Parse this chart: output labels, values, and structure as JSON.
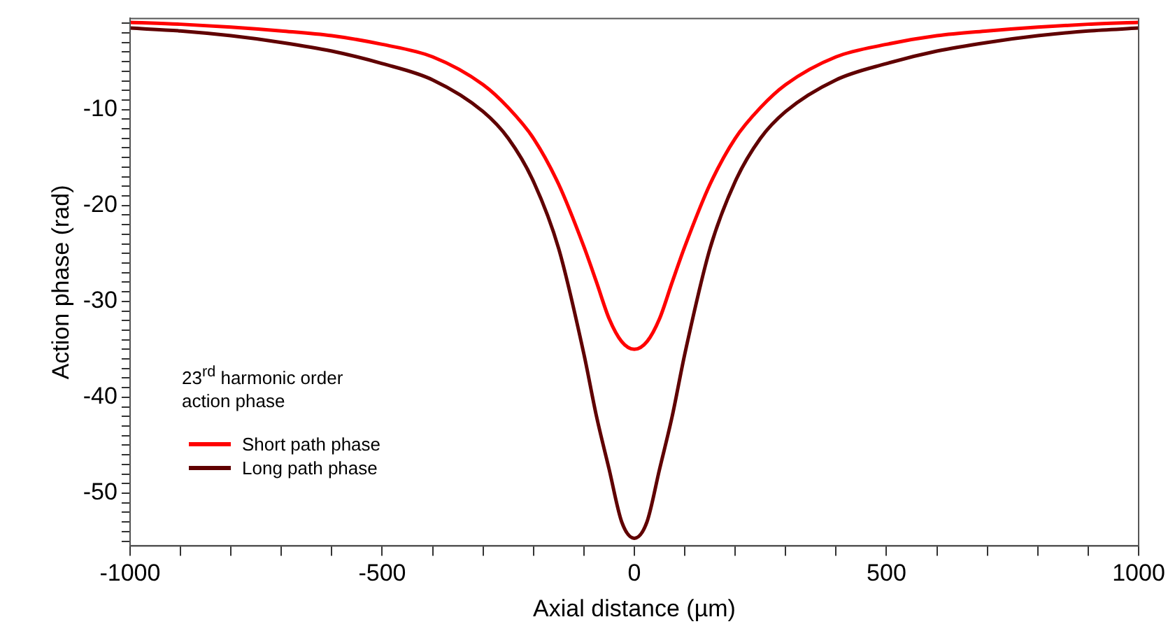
{
  "chart_data": {
    "type": "line",
    "xlabel": "Axial distance (µm)",
    "ylabel": "Action phase (rad)",
    "legend_title": "23$^{rd}$ harmonic order action phase",
    "legend": "bottom left",
    "grid": false,
    "line_style": "solid",
    "marker": "none",
    "xlim": [
      -1000,
      1000
    ],
    "ylim": [
      -55.5,
      -0.5
    ],
    "xticks": [
      -1000,
      {
        "value": -900,
        "label": null
      },
      {
        "value": -800,
        "label": null
      },
      {
        "value": -700,
        "label": null
      },
      {
        "value": -600,
        "label": null
      },
      -500,
      {
        "value": -400,
        "label": null
      },
      {
        "value": -300,
        "label": null
      },
      {
        "value": -200,
        "label": null
      },
      {
        "value": -100,
        "label": null
      },
      0,
      {
        "value": 100,
        "label": null
      },
      {
        "value": 200,
        "label": null
      },
      {
        "value": 300,
        "label": null
      },
      {
        "value": 400,
        "label": null
      },
      500,
      {
        "value": 600,
        "label": null
      },
      {
        "value": 700,
        "label": null
      },
      {
        "value": 800,
        "label": null
      },
      {
        "value": 900,
        "label": null
      },
      1000
    ],
    "yticks": [
      {
        "value": -55,
        "label": null
      },
      {
        "value": -54,
        "label": null
      },
      {
        "value": -53,
        "label": null
      },
      {
        "value": -52,
        "label": null
      },
      {
        "value": -51,
        "label": null
      },
      -50,
      {
        "value": -49,
        "label": null
      },
      {
        "value": -48,
        "label": null
      },
      {
        "value": -47,
        "label": null
      },
      {
        "value": -46,
        "label": null
      },
      {
        "value": -45,
        "label": null
      },
      {
        "value": -44,
        "label": null
      },
      {
        "value": -43,
        "label": null
      },
      {
        "value": -42,
        "label": null
      },
      {
        "value": -41,
        "label": null
      },
      -40,
      {
        "value": -39,
        "label": null
      },
      {
        "value": -38,
        "label": null
      },
      {
        "value": -37,
        "label": null
      },
      {
        "value": -36,
        "label": null
      },
      {
        "value": -35,
        "label": null
      },
      {
        "value": -34,
        "label": null
      },
      {
        "value": -33,
        "label": null
      },
      {
        "value": -32,
        "label": null
      },
      {
        "value": -31,
        "label": null
      },
      -30,
      {
        "value": -29,
        "label": null
      },
      {
        "value": -28,
        "label": null
      },
      {
        "value": -27,
        "label": null
      },
      {
        "value": -26,
        "label": null
      },
      {
        "value": -25,
        "label": null
      },
      {
        "value": -24,
        "label": null
      },
      {
        "value": -23,
        "label": null
      },
      {
        "value": -22,
        "label": null
      },
      {
        "value": -21,
        "label": null
      },
      -20,
      {
        "value": -19,
        "label": null
      },
      {
        "value": -18,
        "label": null
      },
      {
        "value": -17,
        "label": null
      },
      {
        "value": -16,
        "label": null
      },
      {
        "value": -15,
        "label": null
      },
      {
        "value": -14,
        "label": null
      },
      {
        "value": -13,
        "label": null
      },
      {
        "value": -12,
        "label": null
      },
      {
        "value": -11,
        "label": null
      },
      -10,
      {
        "value": -9,
        "label": null
      },
      {
        "value": -8,
        "label": null
      },
      {
        "value": -7,
        "label": null
      },
      {
        "value": -6,
        "label": null
      },
      {
        "value": -5,
        "label": null
      },
      {
        "value": -4,
        "label": null
      },
      {
        "value": -3,
        "label": null
      },
      {
        "value": -2,
        "label": null
      },
      {
        "value": -1,
        "label": null
      }
    ],
    "x": [
      -1000,
      -900,
      -800,
      -700,
      -600,
      -500,
      -400,
      -300,
      -250,
      -200,
      -150,
      -100,
      -75,
      -50,
      -25,
      0,
      25,
      50,
      75,
      100,
      150,
      200,
      250,
      300,
      400,
      500,
      600,
      700,
      800,
      900,
      1000
    ],
    "series": [
      {
        "name": "Short path phase",
        "color": "#ff0000",
        "values": [
          -0.9,
          -1.1,
          -1.4,
          -1.8,
          -2.3,
          -3.2,
          -4.5,
          -7.4,
          -9.8,
          -13.0,
          -17.8,
          -24.3,
          -28.0,
          -31.8,
          -34.2,
          -35.0,
          -34.2,
          -31.8,
          -28.0,
          -24.3,
          -17.8,
          -13.0,
          -9.8,
          -7.4,
          -4.5,
          -3.2,
          -2.3,
          -1.8,
          -1.4,
          -1.1,
          -0.9
        ]
      },
      {
        "name": "Long path phase",
        "color": "#600000",
        "values": [
          -1.5,
          -1.8,
          -2.3,
          -3.0,
          -3.9,
          -5.2,
          -6.9,
          -10.2,
          -13.0,
          -17.5,
          -24.5,
          -35.5,
          -42.0,
          -47.5,
          -53.0,
          -54.7,
          -53.0,
          -47.5,
          -42.0,
          -35.5,
          -24.5,
          -17.5,
          -13.0,
          -10.2,
          -6.9,
          -5.2,
          -3.9,
          -3.0,
          -2.3,
          -1.8,
          -1.5
        ]
      }
    ]
  }
}
